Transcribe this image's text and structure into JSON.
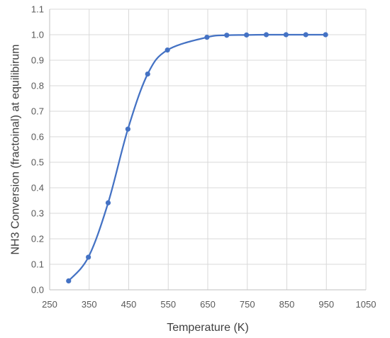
{
  "chart_data": {
    "type": "scatter",
    "title": "",
    "xlabel": "Temperature (K)",
    "ylabel": "NH3 Conversion (fractoinal) at equilibirum",
    "xlim": [
      250,
      1050
    ],
    "ylim": [
      0.0,
      1.1
    ],
    "xticks": [
      "250",
      "350",
      "450",
      "550",
      "650",
      "750",
      "850",
      "950",
      "1050"
    ],
    "yticks": [
      "0.0",
      "0.1",
      "0.2",
      "0.3",
      "0.4",
      "0.5",
      "0.6",
      "0.7",
      "0.8",
      "0.9",
      "1.0",
      "1.1"
    ],
    "grid": "vertical and horizontal",
    "smooth_line": true,
    "series": [
      {
        "color": "#4472c4",
        "x": [
          298,
          348,
          398,
          448,
          498,
          548,
          648,
          698,
          748,
          798,
          848,
          898,
          948
        ],
        "y": [
          0.035,
          0.128,
          0.341,
          0.63,
          0.846,
          0.94,
          0.99,
          0.998,
          0.999,
          1.0,
          1.0,
          1.0,
          1.0
        ]
      }
    ]
  }
}
